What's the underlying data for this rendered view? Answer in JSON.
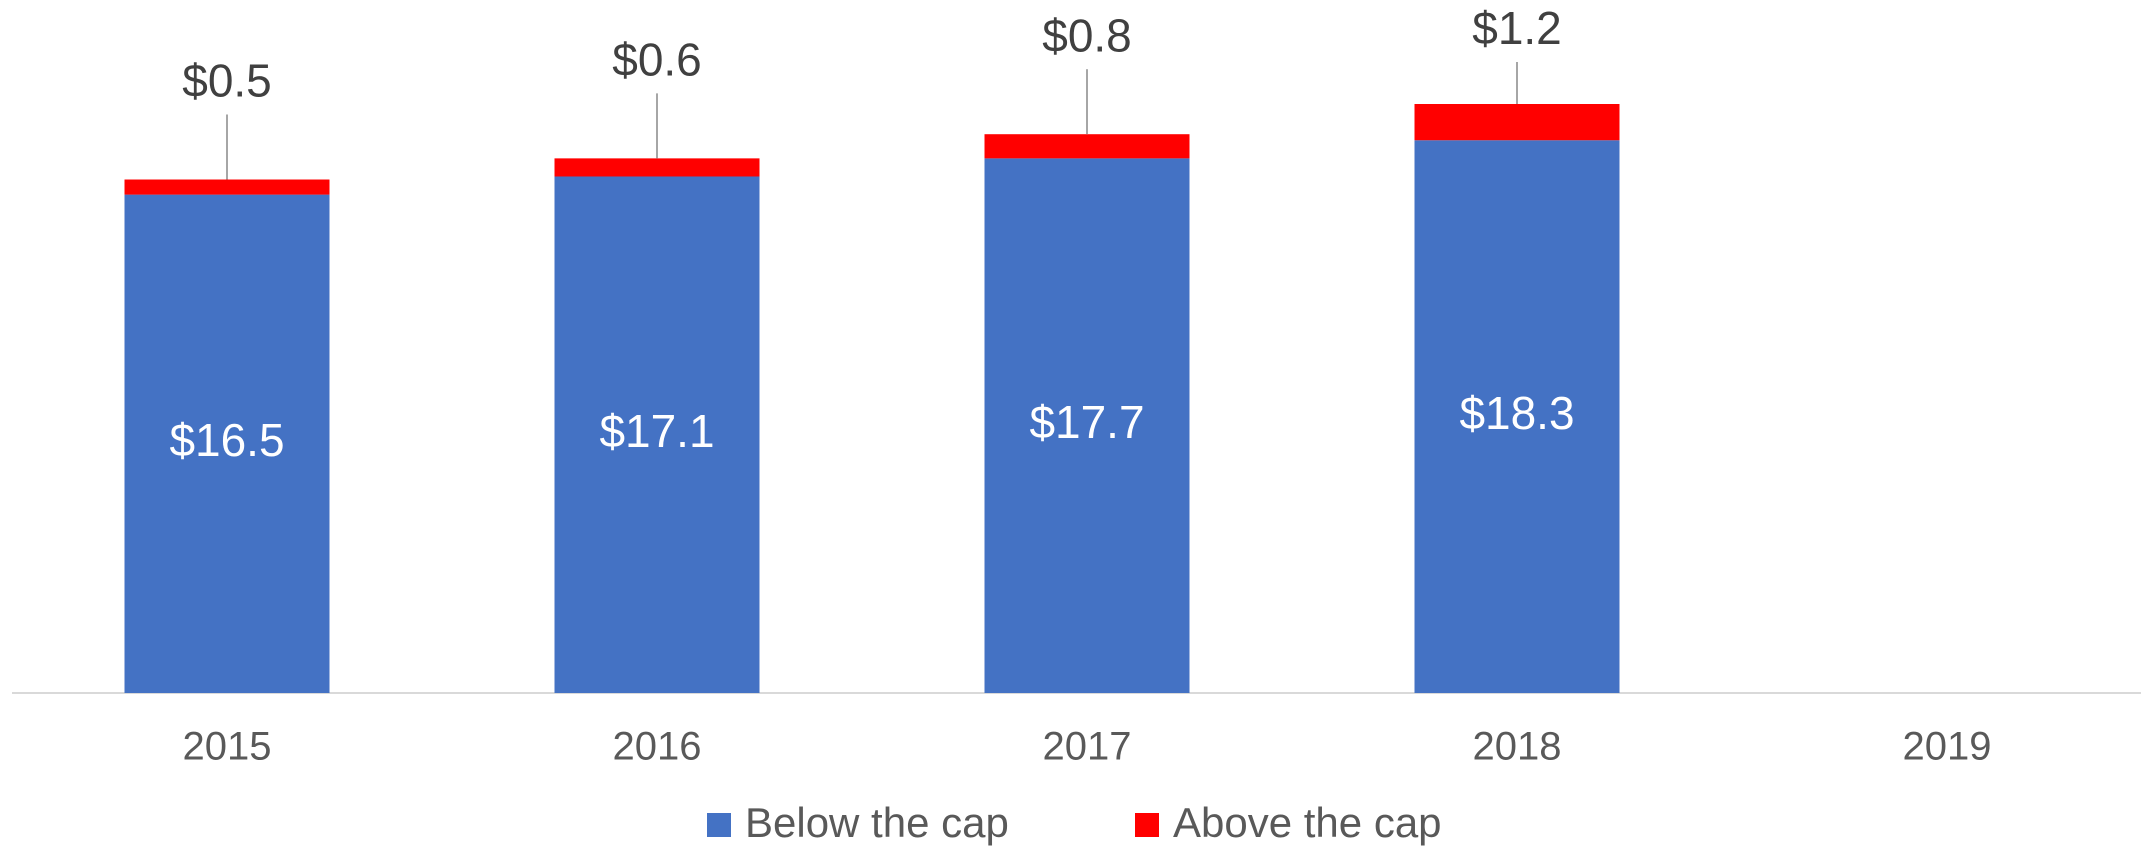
{
  "chart_data": {
    "type": "stacked_bar",
    "categories": [
      "2015",
      "2016",
      "2017",
      "2018",
      "2019"
    ],
    "series": [
      {
        "name": "Below the cap",
        "color": "#4472c4",
        "values": [
          16.5,
          17.1,
          17.7,
          18.3,
          null
        ],
        "value_labels": [
          "$16.5",
          "$17.1",
          "$17.7",
          "$18.3",
          null
        ]
      },
      {
        "name": "Above the cap",
        "color": "#ff0000",
        "values": [
          0.5,
          0.6,
          0.8,
          1.2,
          null
        ],
        "value_labels": [
          "$0.5",
          "$0.6",
          "$0.8",
          "$1.2",
          null
        ]
      }
    ],
    "legend": "bottom"
  }
}
